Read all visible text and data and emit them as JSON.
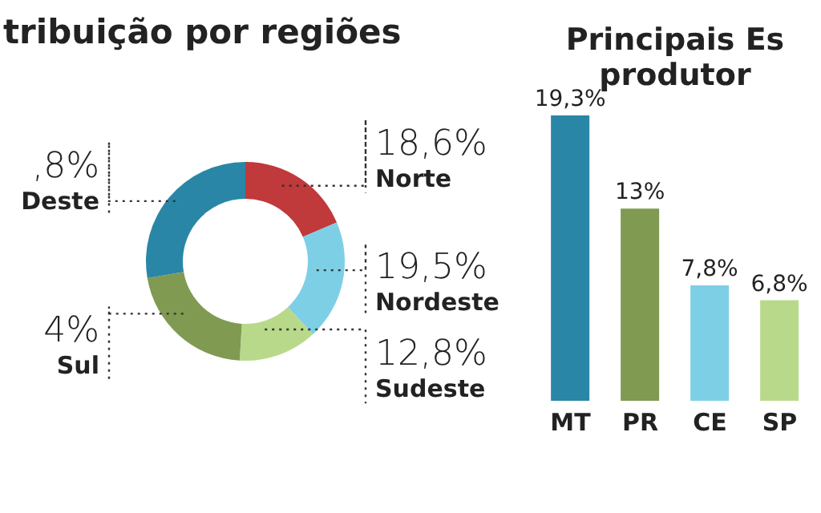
{
  "chart_data": [
    {
      "type": "donut",
      "title": "tribuição por regiões",
      "categories": [
        "Norte",
        "Nordeste",
        "Sudeste",
        "Sul",
        "Deste"
      ],
      "values": [
        18.6,
        19.5,
        12.8,
        21.4,
        27.7
      ],
      "colors": [
        "#c0393b",
        "#7dcfe6",
        "#b9d98a",
        "#809a52",
        "#2a86a6"
      ],
      "value_labels": [
        "18,6%",
        "19,5%",
        "12,8%",
        null,
        null
      ],
      "annotations": [
        "4%",
        ",8%"
      ]
    },
    {
      "type": "bar",
      "title": "Principais Es produtor",
      "categories": [
        "MT",
        "PR",
        "CE",
        "SP"
      ],
      "values": [
        19.3,
        13,
        7.8,
        6.8
      ],
      "colors": [
        "#2a86a6",
        "#809a52",
        "#7dcfe6",
        "#b9d98a"
      ],
      "value_labels": [
        "19,3%",
        "13%",
        "7,8%",
        "6,8%"
      ]
    }
  ]
}
